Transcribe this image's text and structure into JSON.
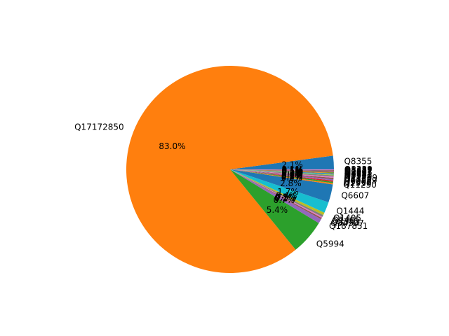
{
  "chart_data": {
    "type": "pie",
    "title": "",
    "start_angle_deg": 0,
    "counterclock": true,
    "autopct": "%1.1f%%",
    "slices": [
      {
        "label": "Q8355",
        "value": 2.1,
        "pct_label": "2.1%",
        "color": "#1f77b4"
      },
      {
        "label": "Q17172850",
        "value": 83.0,
        "pct_label": "83.0%",
        "color": "#ff7f0e"
      },
      {
        "label": "Q5994",
        "value": 5.4,
        "pct_label": "5.4%",
        "color": "#2ca02c"
      },
      {
        "label": "Q187851",
        "value": 0.7,
        "pct_label": "0.7%",
        "color": "#9467bd"
      },
      {
        "label": "Q34307",
        "value": 0.2,
        "pct_label": "0.2%",
        "color": "#8c564b"
      },
      {
        "label": "Q8343",
        "value": 0.2,
        "pct_label": "0.2%",
        "color": "#e377c2"
      },
      {
        "label": "Q1405",
        "value": 0.3,
        "pct_label": "0.3%",
        "color": "#7f7f7f"
      },
      {
        "label": "Q1405",
        "value": 0.4,
        "pct_label": "0.4%",
        "color": "#bcbd22"
      },
      {
        "label": "Q1444",
        "value": 1.7,
        "pct_label": "1.7%",
        "color": "#17becf"
      },
      {
        "label": "Q6607",
        "value": 2.8,
        "pct_label": "2.8%",
        "color": "#1f77b4"
      },
      {
        "label": "Q11250",
        "value": 0.2,
        "pct_label": "0.2%",
        "color": "#ff7f0e"
      },
      {
        "label": "Q2956",
        "value": 0.2,
        "pct_label": "0.2%",
        "color": "#2ca02c"
      },
      {
        "label": "Q5368",
        "value": 0.2,
        "pct_label": "0.2%",
        "color": "#d62728"
      },
      {
        "label": "Q66859",
        "value": 0.2,
        "pct_label": "0.2%",
        "color": "#9467bd"
      },
      {
        "label": "Q6359",
        "value": 0.2,
        "pct_label": "0.2%",
        "color": "#8c564b"
      },
      {
        "label": "Q11259",
        "value": 0.2,
        "pct_label": "0.2%",
        "color": "#e377c2"
      },
      {
        "label": "Q7259",
        "value": 0.2,
        "pct_label": "0.2%",
        "color": "#7f7f7f"
      },
      {
        "label": "Q8371",
        "value": 0.1,
        "pct_label": "0.1%",
        "color": "#bcbd22"
      },
      {
        "label": "Q6881",
        "value": 0.1,
        "pct_label": "0.1%",
        "color": "#17becf"
      },
      {
        "label": "Q4991",
        "value": 0.1,
        "pct_label": "0.1%",
        "color": "#1f77b4"
      },
      {
        "label": "Q8337",
        "value": 0.1,
        "pct_label": "0.1%",
        "color": "#ff7f0e"
      },
      {
        "label": "Q9093",
        "value": 0.1,
        "pct_label": "0.1%",
        "color": "#2ca02c"
      },
      {
        "label": "Q1337",
        "value": 0.1,
        "pct_label": "0.1%",
        "color": "#d62728"
      },
      {
        "label": "Q1627",
        "value": 0.1,
        "pct_label": "0.1%",
        "color": "#9467bd"
      },
      {
        "label": "Q8337",
        "value": 0.1,
        "pct_label": "0.1%",
        "color": "#8c564b"
      },
      {
        "label": "Q3339",
        "value": 0.1,
        "pct_label": "0.1%",
        "color": "#e377c2"
      }
    ]
  }
}
